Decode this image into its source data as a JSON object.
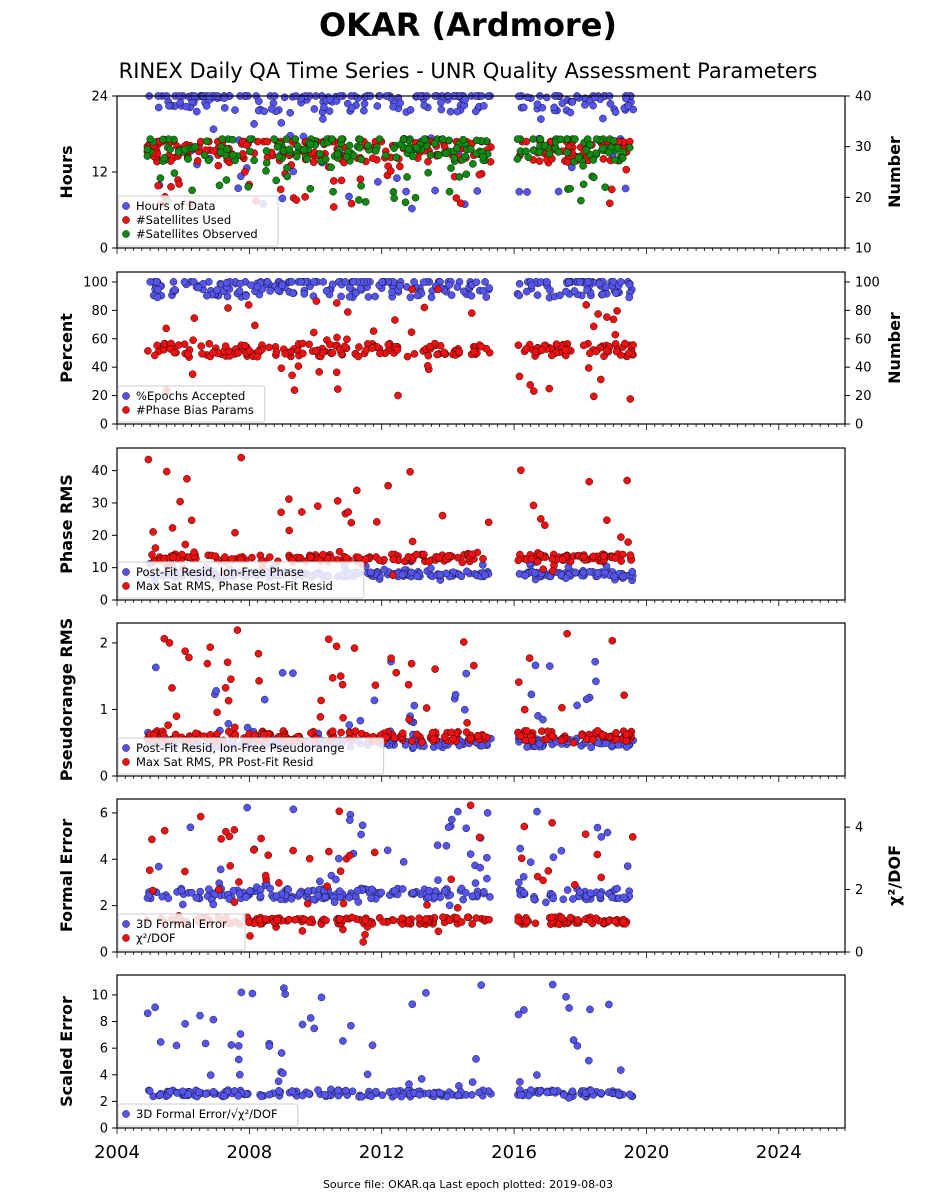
{
  "title": "OKAR (Ardmore)",
  "subtitle": "RINEX Daily QA Time Series - UNR Quality Assessment Parameters",
  "footer": "Source file: OKAR.qa Last epoch plotted: 2019-08-03",
  "colors": {
    "blue": "#5555ee",
    "red": "#ee1111",
    "green": "#118811"
  },
  "chart_data": [
    {
      "type": "scatter",
      "ylabel": "Hours",
      "y2label": "Number",
      "ylim": [
        0,
        24
      ],
      "yticks": [
        "0",
        "12",
        "24"
      ],
      "y2lim": [
        10,
        40
      ],
      "y2ticks": [
        "10",
        "20",
        "30",
        "40"
      ],
      "xlim": [
        2004,
        2026
      ],
      "grid": false,
      "legend_position": "lower-left",
      "series": [
        {
          "name": "Hours of Data",
          "color": "blue",
          "axis": "left",
          "typical": 23.6,
          "range": [
            6,
            24
          ]
        },
        {
          "name": "#Satellites Used",
          "color": "red",
          "axis": "right",
          "typical": 29.5,
          "range": [
            18,
            31
          ]
        },
        {
          "name": "#Satellites Observed",
          "color": "green",
          "axis": "right",
          "typical": 29.8,
          "range": [
            18.5,
            31.5
          ]
        }
      ]
    },
    {
      "type": "scatter",
      "ylabel": "Percent",
      "y2label": "Number",
      "ylim": [
        0,
        107
      ],
      "yticks": [
        "0",
        "20",
        "40",
        "60",
        "80",
        "100"
      ],
      "y2lim": [
        0,
        107
      ],
      "y2ticks": [
        "0",
        "20",
        "40",
        "60",
        "80",
        "100"
      ],
      "xlim": [
        2004,
        2026
      ],
      "grid": false,
      "legend_position": "lower-left",
      "series": [
        {
          "name": "%Epochs Accepted",
          "color": "blue",
          "axis": "left",
          "typical": 98,
          "range": [
            88,
            100
          ]
        },
        {
          "name": "#Phase Bias Params",
          "color": "red",
          "axis": "right",
          "typical": 52,
          "range": [
            17,
            98
          ]
        }
      ]
    },
    {
      "type": "scatter",
      "ylabel": "Phase RMS",
      "ylim": [
        0,
        47
      ],
      "yticks": [
        "0",
        "10",
        "20",
        "30",
        "40"
      ],
      "xlim": [
        2004,
        2026
      ],
      "grid": false,
      "legend_position": "lower-left",
      "series": [
        {
          "name": "Post-Fit Resid, Ion-Free Phase",
          "color": "blue",
          "axis": "left",
          "typical": 8,
          "range": [
            6,
            12
          ]
        },
        {
          "name": "Max Sat RMS, Phase Post-Fit Resid",
          "color": "red",
          "axis": "left",
          "typical": 13,
          "range": [
            7,
            45
          ]
        }
      ]
    },
    {
      "type": "scatter",
      "ylabel": "Pseudorange RMS",
      "ylim": [
        0,
        2.3
      ],
      "yticks": [
        "0",
        "1",
        "2"
      ],
      "xlim": [
        2004,
        2026
      ],
      "grid": false,
      "legend_position": "lower-left",
      "series": [
        {
          "name": "Post-Fit Resid, Ion-Free Pseudorange",
          "color": "blue",
          "axis": "left",
          "typical": 0.5,
          "range": [
            0.4,
            1.75
          ]
        },
        {
          "name": "Max Sat RMS, PR Post-Fit Resid",
          "color": "red",
          "axis": "left",
          "typical": 0.6,
          "range": [
            0.45,
            2.2
          ]
        }
      ]
    },
    {
      "type": "scatter",
      "ylabel": "Formal Error",
      "y2label": "χ²/DOF",
      "ylim": [
        0,
        6.6
      ],
      "yticks": [
        "0",
        "2",
        "4",
        "6"
      ],
      "y2lim": [
        0,
        4.9
      ],
      "y2ticks": [
        "0",
        "2",
        "4"
      ],
      "xlim": [
        2004,
        2026
      ],
      "grid": false,
      "legend_position": "lower-left",
      "series": [
        {
          "name": "3D Formal Error",
          "color": "blue",
          "axis": "left",
          "typical": 2.5,
          "range": [
            2,
            6.4
          ]
        },
        {
          "name": "χ²/DOF",
          "color": "red",
          "axis": "right",
          "typical": 1.0,
          "range": [
            0.3,
            4.7
          ]
        }
      ]
    },
    {
      "type": "scatter",
      "ylabel": "Scaled Error",
      "ylim": [
        0,
        11.5
      ],
      "yticks": [
        "0",
        "2",
        "4",
        "6",
        "8",
        "10"
      ],
      "xlim": [
        2004,
        2026
      ],
      "xticks": [
        "2004",
        "2008",
        "2012",
        "2016",
        "2020",
        "2024"
      ],
      "grid": false,
      "legend_position": "lower-left",
      "series": [
        {
          "name": "3D Formal Error/√χ²/DOF",
          "color": "blue",
          "axis": "left",
          "typical": 2.6,
          "range": [
            1.5,
            11
          ]
        }
      ]
    }
  ]
}
